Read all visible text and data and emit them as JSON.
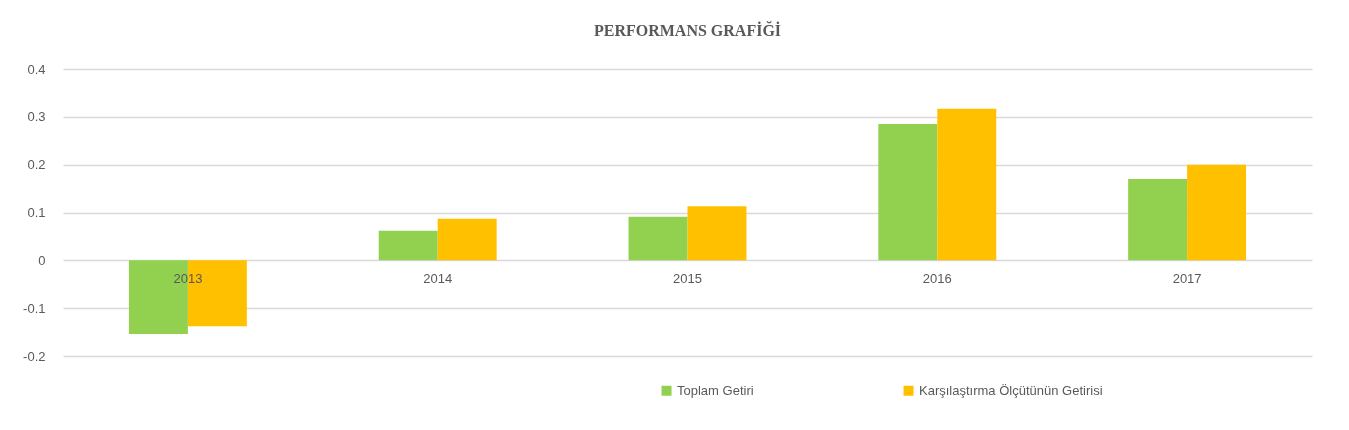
{
  "chart_data": {
    "type": "bar",
    "title": "PERFORMANS GRAFİĞİ",
    "categories": [
      "2013",
      "2014",
      "2015",
      "2016",
      "2017"
    ],
    "series": [
      {
        "name": "Toplam Getiri",
        "color": "#92d050",
        "values": [
          -0.154,
          0.062,
          0.091,
          0.285,
          0.17
        ]
      },
      {
        "name": "Karşılaştırma Ölçütünün Getirisi",
        "color": "#ffc000",
        "values": [
          -0.138,
          0.087,
          0.113,
          0.317,
          0.2
        ]
      }
    ],
    "ylim": [
      -0.2,
      0.4
    ],
    "yticks": [
      -0.2,
      -0.1,
      0,
      0.1,
      0.2,
      0.3,
      0.4
    ],
    "grid": "y",
    "legend": "bottom"
  }
}
